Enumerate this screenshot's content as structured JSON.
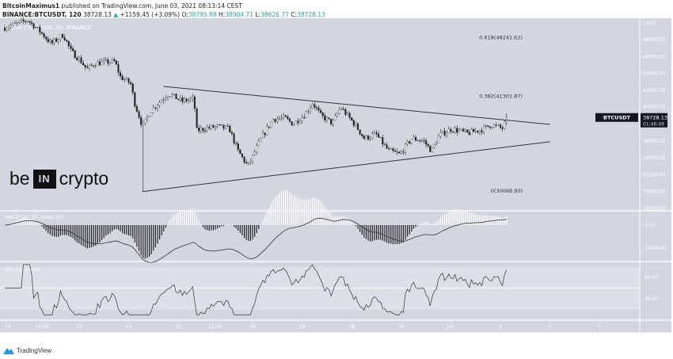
{
  "header": {
    "publisher": "BitcoinMaximus1",
    "published_text": "published on TradingView.com, June 03, 2021 08:13:14 CEST",
    "symbol_interval": "BINANCE:BTCUSDT, 120",
    "last": "38728.13",
    "change": "+1159.45 (+3.09%)",
    "o_label": "O:",
    "o": "38795.88",
    "h_label": "H:",
    "h": "38904.71",
    "l_label": "L:",
    "l": "38626.77",
    "c_label": "C:",
    "c": "38728.13"
  },
  "watermark": "Bitcoin / TetherUS, 2h, BINANCE",
  "logo": {
    "left": "be",
    "box": "IN",
    "right": "crypto"
  },
  "footer": {
    "brand": "TradingView"
  },
  "price_tag": {
    "symbol": "BTCUSDT",
    "price": "38728.13",
    "countdown": "01:46:49"
  },
  "axis_currency": "USDT",
  "colors": {
    "pane": "#d3d6de",
    "line": "#333333",
    "tag": "#131722",
    "green": "#26a69a"
  },
  "chart_data": {
    "type": "candlestick",
    "price_ticks": [
      "48000.00",
      "46000.00",
      "44000.00",
      "42000.00",
      "40000.00",
      "36000.00",
      "34000.00",
      "32000.00",
      "30000.00",
      "28000.00"
    ],
    "price_tick_values": [
      48000,
      46000,
      44000,
      42000,
      40000,
      36000,
      34000,
      32000,
      30000,
      28000
    ],
    "x_ticks": [
      {
        "day": 14,
        "label": "14"
      },
      {
        "day": 15.5,
        "label": "12:00"
      },
      {
        "day": 17,
        "label": "17"
      },
      {
        "day": 19,
        "label": "19"
      },
      {
        "day": 21,
        "label": "21"
      },
      {
        "day": 22.5,
        "label": "12:00"
      },
      {
        "day": 24,
        "label": "24"
      },
      {
        "day": 26,
        "label": "26"
      },
      {
        "day": 28,
        "label": "28"
      },
      {
        "day": 30,
        "label": "30"
      },
      {
        "day": 32,
        "label": "Jun"
      },
      {
        "day": 34,
        "label": "3"
      },
      {
        "day": 36,
        "label": "5"
      },
      {
        "day": 38,
        "label": "7"
      }
    ],
    "price_path_day_price": [
      [
        13.97,
        49400
      ],
      [
        14.93,
        50300
      ],
      [
        15.41,
        49000
      ],
      [
        15.88,
        47500
      ],
      [
        16.36,
        48600
      ],
      [
        16.68,
        46600
      ],
      [
        17.0,
        45700
      ],
      [
        17.32,
        44500
      ],
      [
        17.64,
        45200
      ],
      [
        18.44,
        45400
      ],
      [
        18.66,
        43600
      ],
      [
        19.08,
        42800
      ],
      [
        19.24,
        40500
      ],
      [
        19.56,
        37700
      ],
      [
        19.88,
        39500
      ],
      [
        20.2,
        40500
      ],
      [
        20.61,
        41600
      ],
      [
        21.16,
        40700
      ],
      [
        21.64,
        41000
      ],
      [
        21.73,
        37200
      ],
      [
        22.11,
        37500
      ],
      [
        22.59,
        37700
      ],
      [
        23.07,
        37400
      ],
      [
        23.39,
        34900
      ],
      [
        23.81,
        33000
      ],
      [
        24.35,
        36300
      ],
      [
        24.83,
        38600
      ],
      [
        25.31,
        38700
      ],
      [
        25.63,
        38000
      ],
      [
        26.11,
        39100
      ],
      [
        26.43,
        40500
      ],
      [
        26.75,
        39000
      ],
      [
        27.23,
        38100
      ],
      [
        27.55,
        40000
      ],
      [
        28.19,
        37700
      ],
      [
        28.5,
        36300
      ],
      [
        28.98,
        36800
      ],
      [
        29.46,
        34900
      ],
      [
        29.94,
        34400
      ],
      [
        30.42,
        36300
      ],
      [
        30.9,
        36000
      ],
      [
        31.22,
        34800
      ],
      [
        31.54,
        36700
      ],
      [
        32.02,
        37400
      ],
      [
        32.34,
        37200
      ],
      [
        32.66,
        36900
      ],
      [
        33.3,
        37400
      ],
      [
        33.62,
        37900
      ],
      [
        34.1,
        37500
      ],
      [
        34.26,
        38728
      ]
    ],
    "low_wick": {
      "day": 19.56,
      "price": 30068.9
    },
    "fib_levels": [
      {
        "label": "0.618(48241.62)",
        "price": 48241.62
      },
      {
        "label": "0.382(41301.87)",
        "price": 41301.87
      },
      {
        "label": "0(30068.90)",
        "price": 30068.9
      }
    ],
    "trendlines": [
      {
        "name": "resistance",
        "from": [
          20.4,
          42460
        ],
        "to": [
          36.0,
          37950
        ]
      },
      {
        "name": "support",
        "from": [
          19.55,
          30000
        ],
        "to": [
          36.0,
          35900
        ]
      }
    ],
    "macd": {
      "label": "MACD (21, 50, close, 24)",
      "ticks": [
        "0.00",
        "-2000.00"
      ],
      "tick_values": [
        0,
        -2000
      ]
    },
    "rsi": {
      "label": "RSI (14, close)",
      "ticks": [
        "60.00",
        "40.00"
      ],
      "tick_values": [
        60,
        40
      ]
    }
  }
}
